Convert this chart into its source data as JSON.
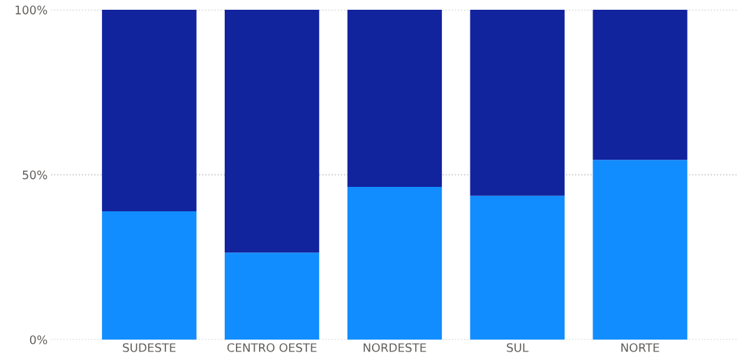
{
  "chart_data": {
    "type": "bar",
    "stacked": true,
    "categories": [
      "SUDESTE",
      "CENTRO OESTE",
      "NORDESTE",
      "SUL",
      "NORTE"
    ],
    "series": [
      {
        "color": "#118dff",
        "values": [
          38.9,
          26.4,
          46.3,
          43.6,
          54.5
        ]
      },
      {
        "color": "#12239e",
        "values": [
          61.1,
          73.6,
          53.7,
          56.4,
          45.5
        ]
      }
    ],
    "ylim": [
      0,
      100
    ],
    "yticks": [
      {
        "value": 0,
        "label": "0%"
      },
      {
        "value": 50,
        "label": "50%"
      },
      {
        "value": 100,
        "label": "100%"
      }
    ],
    "grid": "y",
    "line_style": "dotted"
  }
}
